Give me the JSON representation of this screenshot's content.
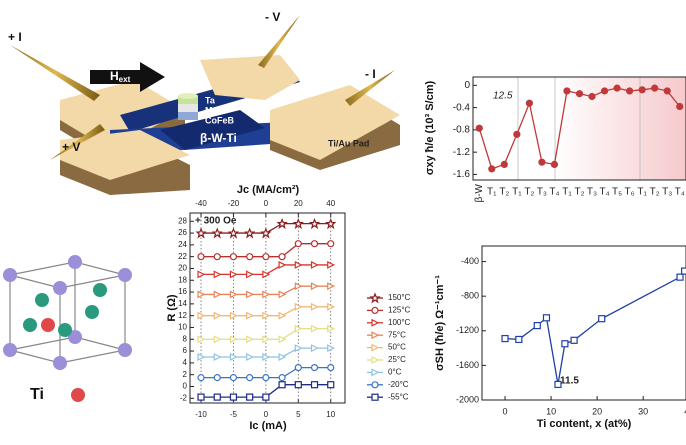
{
  "diagram": {
    "plus_i": "+ I",
    "minus_v": "- V",
    "h": "H",
    "h_sub": "ext",
    "minus_i": "- I",
    "plus_v": "+ V",
    "ta": "Ta",
    "mgo": "MgO",
    "cofeb": "CoFeB",
    "channel": "β-W-Ti",
    "pad": "Ti/Au Pad",
    "element": "Ti"
  },
  "chart_data": [
    {
      "type": "line",
      "ylabel": "σxy ħ/e (10³ S/cm)",
      "annotations": [
        "12.5"
      ],
      "categories": [
        "β-W",
        "T₁",
        "T₂",
        "T₁",
        "T₂",
        "T₃",
        "T₄",
        "T₁",
        "T₂",
        "T₃",
        "T₄",
        "T₅",
        "T₆",
        "T₁",
        "T₂",
        "T₃",
        "T₄"
      ],
      "series": [
        {
          "name": "σxy",
          "color": "#c0393b",
          "marker": "circle",
          "values": [
            -0.77,
            -1.5,
            -1.42,
            -0.88,
            -0.32,
            -1.38,
            -1.42,
            -0.1,
            -0.15,
            -0.2,
            -0.1,
            -0.05,
            -0.1,
            -0.08,
            -0.05,
            -0.1,
            -0.38
          ]
        }
      ],
      "ylim": [
        -1.7,
        0.15
      ],
      "yticks": [
        0,
        -0.4,
        -0.8,
        -1.2,
        -1.6
      ]
    },
    {
      "type": "line",
      "xlabel": "Ic (mA)",
      "x2label": "Jc (MA/cm²)",
      "ylabel": "R (Ω)",
      "annotations": [
        "+ 300 Oe"
      ],
      "grid": "x",
      "legend": "right",
      "x": [
        -10,
        -7.5,
        -5,
        -2.5,
        0,
        2.5,
        5,
        7.5,
        10
      ],
      "xlim": [
        -11.7,
        12.2
      ],
      "xticks": [
        -10,
        -5,
        0,
        5,
        10
      ],
      "x2lim": [
        -46.8,
        48.8
      ],
      "x2ticks": [
        -40,
        -20,
        0,
        20,
        40
      ],
      "ylim": [
        -2.8,
        29.4
      ],
      "yticks": [
        -2,
        0,
        2,
        4,
        6,
        8,
        10,
        12,
        14,
        16,
        18,
        20,
        22,
        24,
        26,
        28
      ],
      "series": [
        {
          "name": "150°C",
          "color": "#8b1c1c",
          "marker": "star",
          "values": [
            26,
            26,
            26,
            26,
            26,
            27.6,
            27.6,
            27.6,
            27.6
          ]
        },
        {
          "name": "125°C",
          "color": "#b8312f",
          "marker": "circle",
          "values": [
            22,
            22,
            22,
            22,
            22,
            22,
            24.2,
            24.2,
            24.2
          ]
        },
        {
          "name": "100°C",
          "color": "#d7352b",
          "marker": "triangle",
          "values": [
            19,
            19,
            19,
            19,
            19,
            20.6,
            20.6,
            20.6,
            20.6
          ]
        },
        {
          "name": "75°C",
          "color": "#e8845a",
          "marker": "triangle",
          "values": [
            15.6,
            15.6,
            15.6,
            15.6,
            15.6,
            15.6,
            17,
            17,
            17
          ]
        },
        {
          "name": "50°C",
          "color": "#f3b877",
          "marker": "triangle",
          "values": [
            12,
            12,
            12,
            12,
            12,
            12,
            13.5,
            13.5,
            13.5
          ]
        },
        {
          "name": "25°C",
          "color": "#e6dd85",
          "marker": "triangle",
          "values": [
            8,
            8,
            8,
            8,
            8,
            8,
            9.8,
            9.8,
            9.8
          ]
        },
        {
          "name": "0°C",
          "color": "#8fc3e3",
          "marker": "triangle",
          "values": [
            5,
            5,
            5,
            5,
            5,
            5,
            6.5,
            6.5,
            6.5
          ]
        },
        {
          "name": "-20°C",
          "color": "#3b74c2",
          "marker": "circle",
          "values": [
            1.5,
            1.5,
            1.5,
            1.5,
            1.5,
            1.5,
            3.2,
            3.2,
            3.2
          ]
        },
        {
          "name": "-55°C",
          "color": "#1c2a88",
          "marker": "square",
          "values": [
            -1.8,
            -1.8,
            -1.8,
            -1.8,
            -1.8,
            0.3,
            0.3,
            0.3,
            0.3
          ]
        }
      ]
    },
    {
      "type": "line",
      "xlabel": "Ti content, x (at%)",
      "ylabel": "σSH (ħ/e) Ω⁻¹cm⁻¹",
      "annotations": [
        "11.5"
      ],
      "x": [
        0,
        3,
        7,
        9,
        11.5,
        13,
        15,
        21,
        38,
        39
      ],
      "xlim": [
        -5,
        39.3
      ],
      "xticks": [
        0,
        10,
        20,
        30,
        40
      ],
      "ylim": [
        -2000,
        -220
      ],
      "yticks": [
        -400,
        -800,
        -1200,
        -1600,
        -2000
      ],
      "series": [
        {
          "name": "σSH",
          "color": "#1f3fa8",
          "marker": "square",
          "values": [
            -1290,
            -1300,
            -1140,
            -1050,
            -1820,
            -1350,
            -1310,
            -1060,
            -580,
            -510
          ]
        }
      ]
    }
  ]
}
